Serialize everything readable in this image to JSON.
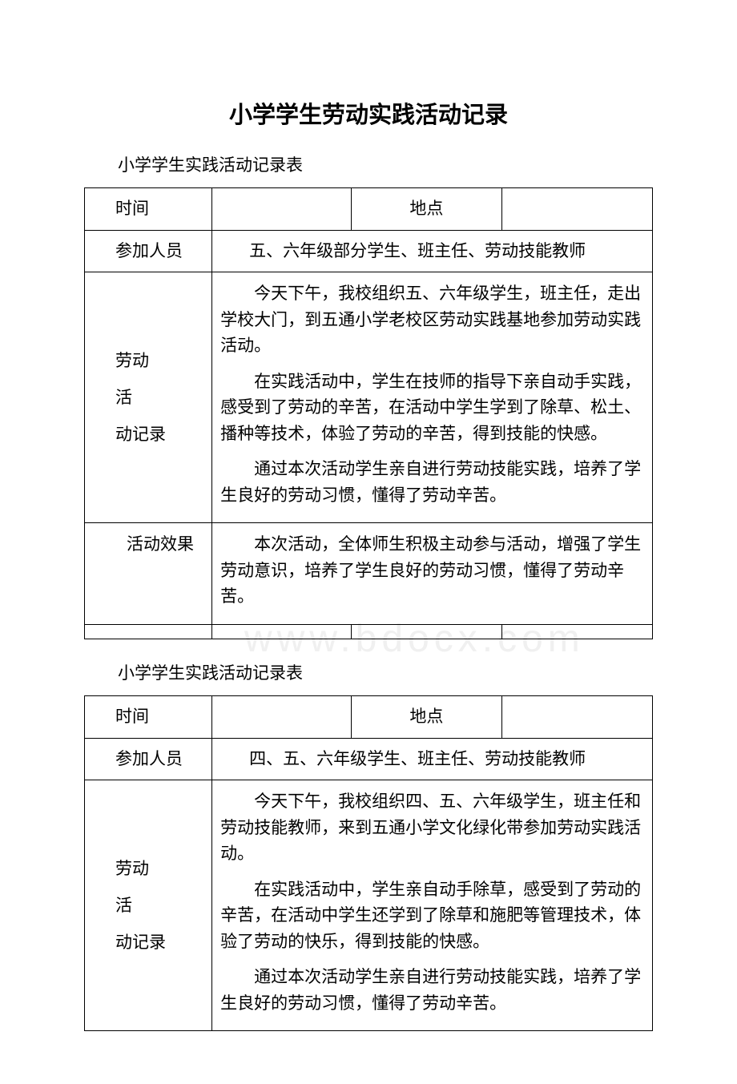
{
  "document": {
    "main_title": "小学学生劳动实践活动记录",
    "watermark": "www.bdocx.com",
    "tables": [
      {
        "sub_title": "小学学生实践活动记录表",
        "time_label": "时间",
        "time_value": "",
        "location_label": "地点",
        "location_value": "",
        "participants_label": "参加人员",
        "participants_value": "　　五、六年级部分学生、班主任、劳动技能教师",
        "record_label_l1": "劳动",
        "record_label_l2": "活",
        "record_label_l3": "动记录",
        "record_paragraphs": [
          "今天下午，我校组织五、六年级学生，班主任，走出学校大门，到五通小学老校区劳动实践基地参加劳动实践活动。",
          "在实践活动中，学生在技师的指导下亲自动手实践，感受到了劳动的辛苦，在活动中学生学到了除草、松土、播种等技术，体验了劳动的辛苦，得到技能的快感。",
          "通过本次活动学生亲自进行劳动技能实践，培养了学生良好的劳动习惯，懂得了劳动辛苦。"
        ],
        "effect_label": "　　活动效果",
        "effect_paragraphs": [
          "本次活动，全体师生积极主动参与活动，增强了学生劳动意识，培养了学生良好的劳动习惯，懂得了劳动辛苦。"
        ]
      },
      {
        "sub_title": "小学学生实践活动记录表",
        "time_label": "时间",
        "time_value": "",
        "location_label": "地点",
        "location_value": "",
        "participants_label": "参加人员",
        "participants_value": "　　四、五、六年级学生、班主任、劳动技能教师",
        "record_label_l1": "劳动",
        "record_label_l2": "活",
        "record_label_l3": "动记录",
        "record_paragraphs": [
          "今天下午，我校组织四、五、六年级学生，班主任和劳动技能教师，来到五通小学文化绿化带参加劳动实践活动。",
          "在实践活动中，学生亲自动手除草，感受到了劳动的辛苦，在活动中学生还学到了除草和施肥等管理技术，体验了劳动的快乐，得到技能的快感。",
          "通过本次活动学生亲自进行劳动技能实践，培养了学生良好的劳动习惯，懂得了劳动辛苦。"
        ]
      }
    ]
  }
}
